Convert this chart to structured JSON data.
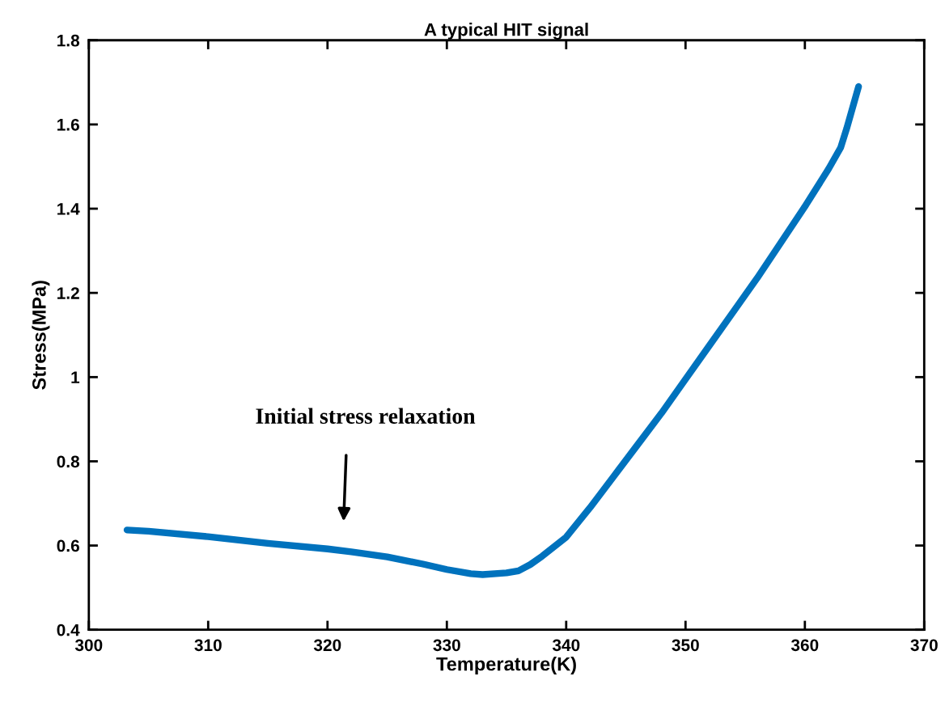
{
  "chart_data": {
    "type": "line",
    "title": "A typical HIT signal",
    "xlabel": "Temperature(K)",
    "ylabel": "Stress(MPa)",
    "x": [
      303.2,
      305,
      310,
      315,
      320,
      322,
      325,
      328,
      330,
      332,
      333,
      335,
      336,
      337,
      338,
      340,
      342,
      344,
      346,
      348,
      350,
      352,
      354,
      356,
      358,
      360,
      362,
      363,
      363.5,
      364,
      364.5
    ],
    "series": [
      {
        "color": "#0072bd",
        "values": [
          0.637,
          0.634,
          0.621,
          0.605,
          0.592,
          0.585,
          0.573,
          0.556,
          0.543,
          0.533,
          0.531,
          0.535,
          0.54,
          0.555,
          0.575,
          0.62,
          0.69,
          0.765,
          0.84,
          0.915,
          0.995,
          1.075,
          1.155,
          1.235,
          1.32,
          1.405,
          1.495,
          1.545,
          1.59,
          1.64,
          1.69
        ]
      }
    ],
    "xlim": [
      300,
      370
    ],
    "xticks": [
      300,
      310,
      320,
      330,
      340,
      350,
      360,
      370
    ],
    "ylim": [
      0.4,
      1.8
    ],
    "yticks": [
      0.4,
      0.6,
      0.8,
      1,
      1.2,
      1.4,
      1.6,
      1.8
    ],
    "annotations": [
      "Initial stress relaxation"
    ],
    "grid": false,
    "legend": false,
    "line_style": "solid",
    "marker": "none"
  }
}
